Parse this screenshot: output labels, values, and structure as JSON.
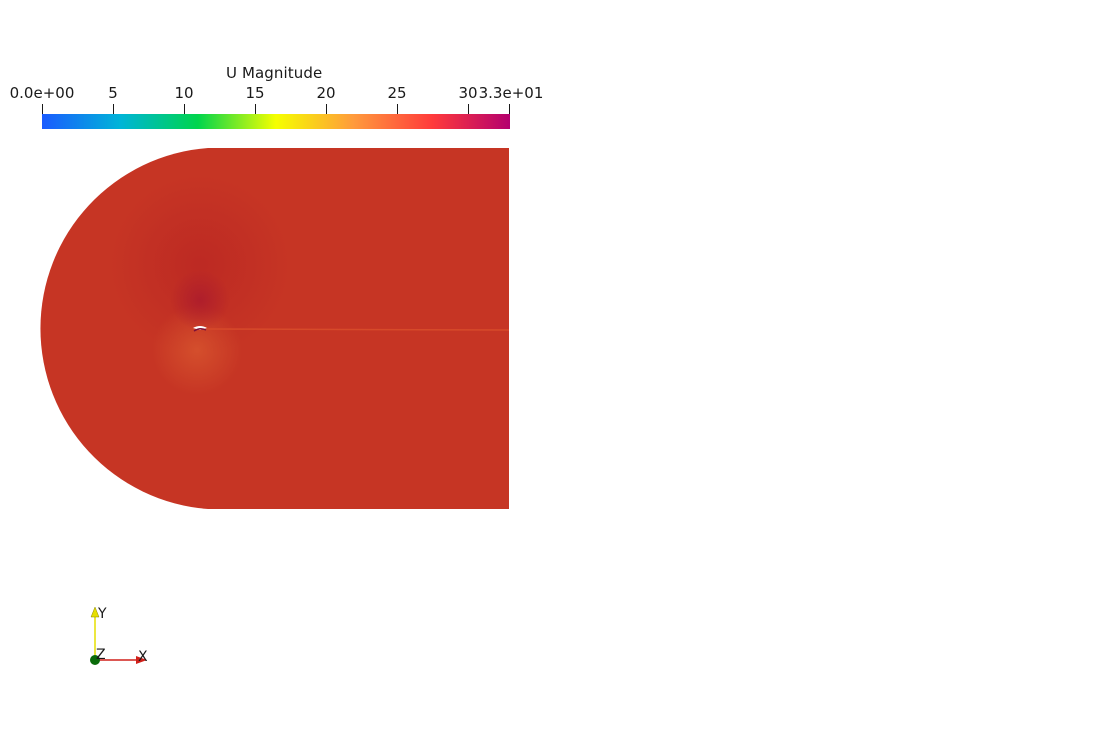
{
  "colorbar": {
    "title": "U Magnitude",
    "ticks": [
      "0.0e+00",
      "5",
      "10",
      "15",
      "20",
      "25",
      "30",
      "3.3e+01"
    ],
    "gradient_stops": [
      "#1a5bff",
      "#00b4d8",
      "#00d54c",
      "#f6ff00",
      "#ff9a3c",
      "#ff3b3b",
      "#b4006e"
    ]
  },
  "field": {
    "base_color": "#c63524"
  },
  "orientation_axes": {
    "y_label": "Y",
    "z_label": "Z",
    "x_label": "X",
    "colors": {
      "x": "#d0201a",
      "y": "#e6df00",
      "z": "#0a6b0a"
    }
  }
}
